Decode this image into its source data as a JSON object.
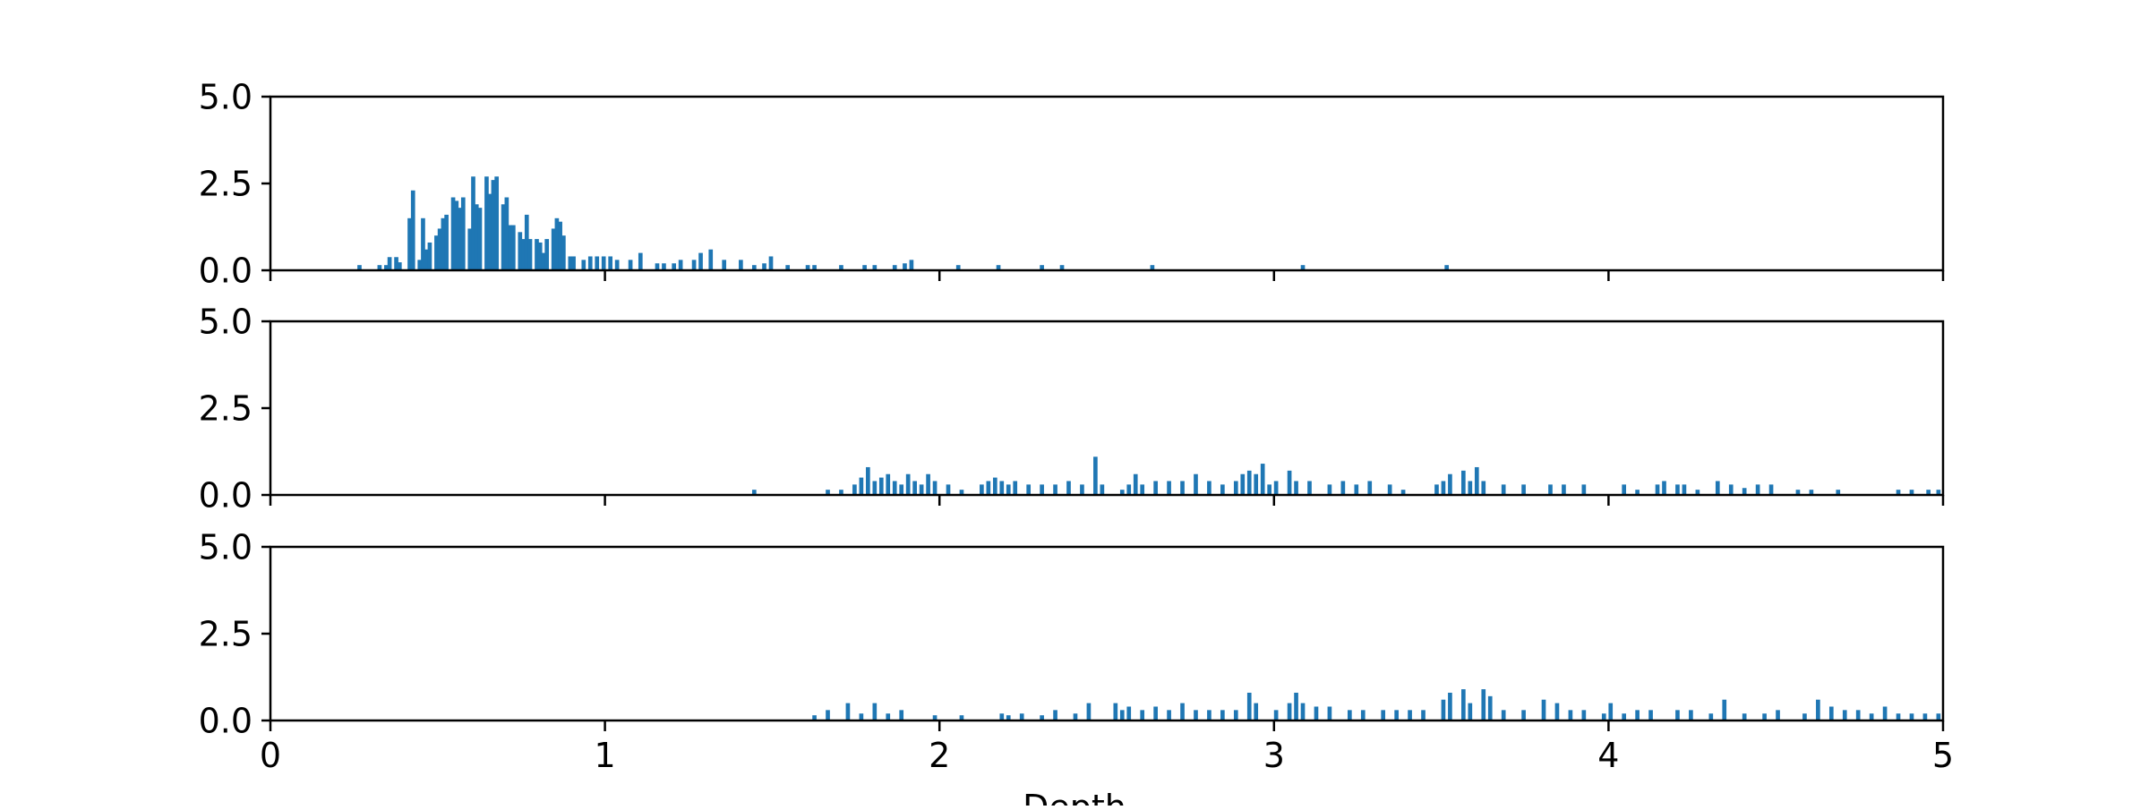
{
  "chart_data": {
    "type": "bar",
    "xlabel": "Depth",
    "xlim": [
      0,
      5
    ],
    "x_ticks": [
      "0",
      "1",
      "2",
      "3",
      "4",
      "5"
    ],
    "bin_width": 0.0125,
    "color": "#1f77b4",
    "panels": [
      {
        "ylim": [
          0,
          5
        ],
        "y_ticks": [
          "0.0",
          "2.5",
          "5.0"
        ],
        "bins": [
          [
            0.26,
            0.15
          ],
          [
            0.32,
            0.15
          ],
          [
            0.34,
            0.15
          ],
          [
            0.35,
            0.38
          ],
          [
            0.37,
            0.38
          ],
          [
            0.38,
            0.23
          ],
          [
            0.41,
            1.5
          ],
          [
            0.42,
            2.3
          ],
          [
            0.44,
            0.3
          ],
          [
            0.45,
            1.5
          ],
          [
            0.46,
            0.6
          ],
          [
            0.47,
            0.8
          ],
          [
            0.49,
            1.0
          ],
          [
            0.5,
            1.2
          ],
          [
            0.51,
            1.5
          ],
          [
            0.52,
            1.6
          ],
          [
            0.54,
            2.1
          ],
          [
            0.55,
            2.0
          ],
          [
            0.56,
            1.8
          ],
          [
            0.57,
            2.1
          ],
          [
            0.59,
            1.2
          ],
          [
            0.6,
            2.7
          ],
          [
            0.61,
            1.9
          ],
          [
            0.62,
            1.8
          ],
          [
            0.64,
            2.7
          ],
          [
            0.65,
            2.2
          ],
          [
            0.66,
            2.6
          ],
          [
            0.67,
            2.7
          ],
          [
            0.69,
            1.9
          ],
          [
            0.7,
            2.1
          ],
          [
            0.71,
            1.3
          ],
          [
            0.72,
            1.3
          ],
          [
            0.74,
            1.1
          ],
          [
            0.75,
            0.9
          ],
          [
            0.76,
            1.6
          ],
          [
            0.77,
            0.9
          ],
          [
            0.79,
            0.9
          ],
          [
            0.8,
            0.8
          ],
          [
            0.81,
            0.5
          ],
          [
            0.82,
            0.9
          ],
          [
            0.84,
            1.2
          ],
          [
            0.85,
            1.5
          ],
          [
            0.86,
            1.4
          ],
          [
            0.87,
            1.0
          ],
          [
            0.89,
            0.4
          ],
          [
            0.9,
            0.4
          ],
          [
            0.93,
            0.3
          ],
          [
            0.95,
            0.4
          ],
          [
            0.97,
            0.4
          ],
          [
            0.99,
            0.4
          ],
          [
            1.01,
            0.4
          ],
          [
            1.03,
            0.3
          ],
          [
            1.07,
            0.3
          ],
          [
            1.1,
            0.5
          ],
          [
            1.15,
            0.2
          ],
          [
            1.17,
            0.2
          ],
          [
            1.2,
            0.2
          ],
          [
            1.22,
            0.3
          ],
          [
            1.26,
            0.3
          ],
          [
            1.28,
            0.5
          ],
          [
            1.31,
            0.6
          ],
          [
            1.35,
            0.3
          ],
          [
            1.4,
            0.3
          ],
          [
            1.44,
            0.15
          ],
          [
            1.47,
            0.2
          ],
          [
            1.49,
            0.4
          ],
          [
            1.54,
            0.15
          ],
          [
            1.6,
            0.15
          ],
          [
            1.62,
            0.15
          ],
          [
            1.7,
            0.15
          ],
          [
            1.77,
            0.15
          ],
          [
            1.8,
            0.15
          ],
          [
            1.86,
            0.15
          ],
          [
            1.89,
            0.2
          ],
          [
            1.91,
            0.3
          ],
          [
            2.05,
            0.15
          ],
          [
            2.17,
            0.15
          ],
          [
            2.3,
            0.15
          ],
          [
            2.36,
            0.15
          ],
          [
            2.63,
            0.15
          ],
          [
            3.08,
            0.15
          ],
          [
            3.51,
            0.15
          ]
        ]
      },
      {
        "ylim": [
          0,
          5
        ],
        "y_ticks": [
          "0.0",
          "2.5",
          "5.0"
        ],
        "bins": [
          [
            1.44,
            0.15
          ],
          [
            1.66,
            0.15
          ],
          [
            1.7,
            0.15
          ],
          [
            1.74,
            0.3
          ],
          [
            1.76,
            0.5
          ],
          [
            1.78,
            0.8
          ],
          [
            1.8,
            0.4
          ],
          [
            1.82,
            0.5
          ],
          [
            1.84,
            0.6
          ],
          [
            1.86,
            0.4
          ],
          [
            1.88,
            0.3
          ],
          [
            1.9,
            0.6
          ],
          [
            1.92,
            0.4
          ],
          [
            1.94,
            0.3
          ],
          [
            1.96,
            0.6
          ],
          [
            1.98,
            0.4
          ],
          [
            2.02,
            0.3
          ],
          [
            2.06,
            0.15
          ],
          [
            2.12,
            0.3
          ],
          [
            2.14,
            0.4
          ],
          [
            2.16,
            0.5
          ],
          [
            2.18,
            0.4
          ],
          [
            2.2,
            0.3
          ],
          [
            2.22,
            0.4
          ],
          [
            2.26,
            0.3
          ],
          [
            2.3,
            0.3
          ],
          [
            2.34,
            0.3
          ],
          [
            2.38,
            0.4
          ],
          [
            2.42,
            0.3
          ],
          [
            2.46,
            1.1
          ],
          [
            2.48,
            0.3
          ],
          [
            2.54,
            0.15
          ],
          [
            2.56,
            0.3
          ],
          [
            2.58,
            0.6
          ],
          [
            2.6,
            0.3
          ],
          [
            2.64,
            0.4
          ],
          [
            2.68,
            0.4
          ],
          [
            2.72,
            0.4
          ],
          [
            2.76,
            0.6
          ],
          [
            2.8,
            0.4
          ],
          [
            2.84,
            0.3
          ],
          [
            2.88,
            0.4
          ],
          [
            2.9,
            0.6
          ],
          [
            2.92,
            0.7
          ],
          [
            2.94,
            0.6
          ],
          [
            2.96,
            0.9
          ],
          [
            2.98,
            0.3
          ],
          [
            3.0,
            0.4
          ],
          [
            3.04,
            0.7
          ],
          [
            3.06,
            0.4
          ],
          [
            3.1,
            0.4
          ],
          [
            3.16,
            0.3
          ],
          [
            3.2,
            0.4
          ],
          [
            3.24,
            0.3
          ],
          [
            3.28,
            0.4
          ],
          [
            3.34,
            0.3
          ],
          [
            3.38,
            0.15
          ],
          [
            3.48,
            0.3
          ],
          [
            3.5,
            0.4
          ],
          [
            3.52,
            0.6
          ],
          [
            3.56,
            0.7
          ],
          [
            3.58,
            0.4
          ],
          [
            3.6,
            0.8
          ],
          [
            3.62,
            0.4
          ],
          [
            3.68,
            0.3
          ],
          [
            3.74,
            0.3
          ],
          [
            3.82,
            0.3
          ],
          [
            3.86,
            0.3
          ],
          [
            3.92,
            0.3
          ],
          [
            4.04,
            0.3
          ],
          [
            4.08,
            0.15
          ],
          [
            4.14,
            0.3
          ],
          [
            4.16,
            0.4
          ],
          [
            4.2,
            0.3
          ],
          [
            4.22,
            0.3
          ],
          [
            4.26,
            0.15
          ],
          [
            4.32,
            0.4
          ],
          [
            4.36,
            0.3
          ],
          [
            4.4,
            0.2
          ],
          [
            4.44,
            0.3
          ],
          [
            4.48,
            0.3
          ],
          [
            4.56,
            0.15
          ],
          [
            4.6,
            0.15
          ],
          [
            4.68,
            0.15
          ],
          [
            4.86,
            0.15
          ],
          [
            4.9,
            0.15
          ],
          [
            4.95,
            0.15
          ],
          [
            4.98,
            0.15
          ]
        ]
      },
      {
        "ylim": [
          0,
          5
        ],
        "y_ticks": [
          "0.0",
          "2.5",
          "5.0"
        ],
        "bins": [
          [
            1.62,
            0.15
          ],
          [
            1.66,
            0.3
          ],
          [
            1.72,
            0.5
          ],
          [
            1.76,
            0.2
          ],
          [
            1.8,
            0.5
          ],
          [
            1.84,
            0.2
          ],
          [
            1.88,
            0.3
          ],
          [
            1.98,
            0.15
          ],
          [
            2.06,
            0.15
          ],
          [
            2.18,
            0.2
          ],
          [
            2.2,
            0.15
          ],
          [
            2.24,
            0.2
          ],
          [
            2.3,
            0.15
          ],
          [
            2.34,
            0.3
          ],
          [
            2.4,
            0.2
          ],
          [
            2.44,
            0.5
          ],
          [
            2.52,
            0.5
          ],
          [
            2.54,
            0.3
          ],
          [
            2.56,
            0.4
          ],
          [
            2.6,
            0.3
          ],
          [
            2.64,
            0.4
          ],
          [
            2.68,
            0.3
          ],
          [
            2.72,
            0.5
          ],
          [
            2.76,
            0.3
          ],
          [
            2.8,
            0.3
          ],
          [
            2.84,
            0.3
          ],
          [
            2.88,
            0.3
          ],
          [
            2.92,
            0.8
          ],
          [
            2.94,
            0.5
          ],
          [
            3.0,
            0.3
          ],
          [
            3.04,
            0.5
          ],
          [
            3.06,
            0.8
          ],
          [
            3.08,
            0.5
          ],
          [
            3.12,
            0.4
          ],
          [
            3.16,
            0.4
          ],
          [
            3.22,
            0.3
          ],
          [
            3.26,
            0.3
          ],
          [
            3.32,
            0.3
          ],
          [
            3.36,
            0.3
          ],
          [
            3.4,
            0.3
          ],
          [
            3.44,
            0.3
          ],
          [
            3.5,
            0.6
          ],
          [
            3.52,
            0.8
          ],
          [
            3.56,
            0.9
          ],
          [
            3.58,
            0.5
          ],
          [
            3.62,
            0.9
          ],
          [
            3.64,
            0.7
          ],
          [
            3.68,
            0.3
          ],
          [
            3.74,
            0.3
          ],
          [
            3.8,
            0.6
          ],
          [
            3.84,
            0.5
          ],
          [
            3.88,
            0.3
          ],
          [
            3.92,
            0.3
          ],
          [
            3.98,
            0.2
          ],
          [
            4.0,
            0.5
          ],
          [
            4.04,
            0.2
          ],
          [
            4.08,
            0.3
          ],
          [
            4.12,
            0.3
          ],
          [
            4.2,
            0.3
          ],
          [
            4.24,
            0.3
          ],
          [
            4.3,
            0.2
          ],
          [
            4.34,
            0.6
          ],
          [
            4.4,
            0.2
          ],
          [
            4.46,
            0.2
          ],
          [
            4.5,
            0.3
          ],
          [
            4.58,
            0.2
          ],
          [
            4.62,
            0.6
          ],
          [
            4.66,
            0.4
          ],
          [
            4.7,
            0.3
          ],
          [
            4.74,
            0.3
          ],
          [
            4.78,
            0.2
          ],
          [
            4.82,
            0.4
          ],
          [
            4.86,
            0.2
          ],
          [
            4.9,
            0.2
          ],
          [
            4.94,
            0.2
          ],
          [
            4.98,
            0.2
          ]
        ]
      }
    ]
  }
}
